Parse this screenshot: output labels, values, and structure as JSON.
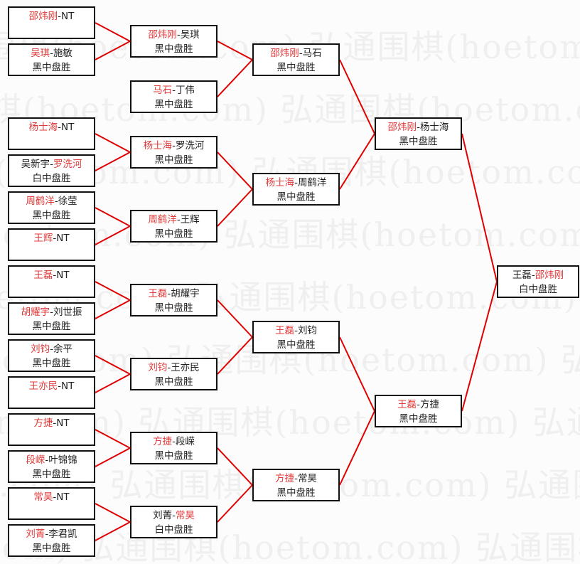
{
  "watermark": "弘通围棋(hoetom.com)",
  "colors": {
    "winner": "#e03a3a",
    "connector": "#e00000",
    "border": "#111111"
  },
  "rounds": [
    [
      {
        "p1": "邵炜刚",
        "p2": "NT",
        "winner": 1,
        "result": ""
      },
      {
        "p1": "吴琪",
        "p2": "施敏",
        "winner": 1,
        "result": "黑中盘胜"
      },
      {
        "p1": "杨士海",
        "p2": "NT",
        "winner": 1,
        "result": ""
      },
      {
        "p1": "吴新宇",
        "p2": "罗洗河",
        "winner": 2,
        "result": "白中盘胜"
      },
      {
        "p1": "周鹤洋",
        "p2": "徐莹",
        "winner": 1,
        "result": "黑中盘胜"
      },
      {
        "p1": "王辉",
        "p2": "NT",
        "winner": 1,
        "result": ""
      },
      {
        "p1": "王磊",
        "p2": "NT",
        "winner": 1,
        "result": ""
      },
      {
        "p1": "胡耀宇",
        "p2": "刘世振",
        "winner": 1,
        "result": "黑中盘胜"
      },
      {
        "p1": "刘钧",
        "p2": "余平",
        "winner": 1,
        "result": "黑中盘胜"
      },
      {
        "p1": "王亦民",
        "p2": "NT",
        "winner": 1,
        "result": ""
      },
      {
        "p1": "方捷",
        "p2": "NT",
        "winner": 1,
        "result": ""
      },
      {
        "p1": "段嵘",
        "p2": "叶锦锦",
        "winner": 1,
        "result": "黑中盘胜"
      },
      {
        "p1": "常昊",
        "p2": "NT",
        "winner": 1,
        "result": ""
      },
      {
        "p1": "刘菁",
        "p2": "李君凯",
        "winner": 1,
        "result": "黑中盘胜"
      }
    ],
    [
      {
        "p1": "邵炜刚",
        "p2": "吴琪",
        "winner": 1,
        "result": "黑中盘胜"
      },
      {
        "p1": "马石",
        "p2": "丁伟",
        "winner": 1,
        "result": "黑中盘胜"
      },
      {
        "p1": "杨士海",
        "p2": "罗洗河",
        "winner": 1,
        "result": "黑中盘胜"
      },
      {
        "p1": "周鹤洋",
        "p2": "王辉",
        "winner": 1,
        "result": "黑中盘胜"
      },
      {
        "p1": "王磊",
        "p2": "胡耀宇",
        "winner": 1,
        "result": "黑中盘胜"
      },
      {
        "p1": "刘钧",
        "p2": "王亦民",
        "winner": 1,
        "result": "黑中盘胜"
      },
      {
        "p1": "方捷",
        "p2": "段嵘",
        "winner": 1,
        "result": "黑中盘胜"
      },
      {
        "p1": "刘菁",
        "p2": "常昊",
        "winner": 2,
        "result": "白中盘胜"
      }
    ],
    [
      {
        "p1": "邵炜刚",
        "p2": "马石",
        "winner": 1,
        "result": "黑中盘胜"
      },
      {
        "p1": "杨士海",
        "p2": "周鹤洋",
        "winner": 1,
        "result": "黑中盘胜"
      },
      {
        "p1": "王磊",
        "p2": "刘钧",
        "winner": 1,
        "result": "黑中盘胜"
      },
      {
        "p1": "方捷",
        "p2": "常昊",
        "winner": 1,
        "result": "黑中盘胜"
      }
    ],
    [
      {
        "p1": "邵炜刚",
        "p2": "杨士海",
        "winner": 1,
        "result": "黑中盘胜"
      },
      {
        "p1": "王磊",
        "p2": "方捷",
        "winner": 1,
        "result": "黑中盘胜"
      }
    ],
    [
      {
        "p1": "王磊",
        "p2": "邵炜刚",
        "winner": 2,
        "result": "白中盘胜"
      }
    ]
  ]
}
